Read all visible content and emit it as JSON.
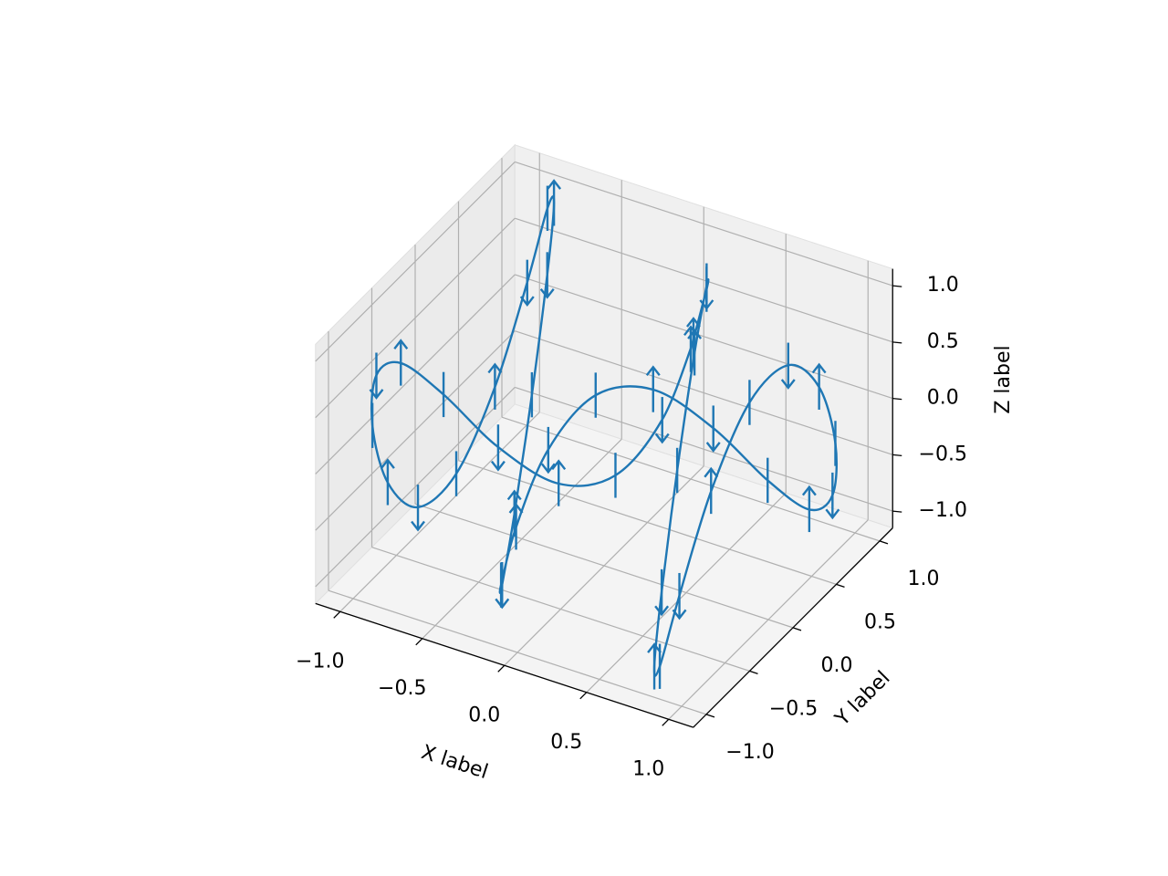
{
  "chart_data": {
    "type": "errorbar3d",
    "xlabel": "X label",
    "ylabel": "Y label",
    "zlabel": "Z label",
    "xlim": [
      -1.15,
      1.15
    ],
    "ylim": [
      -1.15,
      1.15
    ],
    "zlim": [
      -1.15,
      1.15
    ],
    "xticks": [
      {
        "value": -1,
        "label": "−1.0"
      },
      {
        "value": -0.5,
        "label": "−0.5"
      },
      {
        "value": 0,
        "label": "0.0"
      },
      {
        "value": 0.5,
        "label": "0.5"
      },
      {
        "value": 1,
        "label": "1.0"
      }
    ],
    "yticks": [
      {
        "value": -1,
        "label": "−1.0"
      },
      {
        "value": -0.5,
        "label": "−0.5"
      },
      {
        "value": 0,
        "label": "0.0"
      },
      {
        "value": 0.5,
        "label": "0.5"
      },
      {
        "value": 1,
        "label": "1.0"
      }
    ],
    "zticks": [
      {
        "value": -1,
        "label": "−1.0"
      },
      {
        "value": -0.5,
        "label": "−0.5"
      },
      {
        "value": 0,
        "label": "0.0"
      },
      {
        "value": 0.5,
        "label": "0.5"
      },
      {
        "value": 1,
        "label": "1.0"
      }
    ],
    "grid": true,
    "series": [
      {
        "color": "#1f77b4",
        "x": [
          0,
          0.149,
          0.296,
          0.435,
          0.565,
          0.682,
          0.783,
          0.867,
          0.932,
          0.976,
          0.997,
          0.997,
          0.974,
          0.929,
          0.863,
          0.778,
          0.675,
          0.558,
          0.427,
          0.287,
          0.141,
          -0.008,
          -0.158,
          -0.303,
          -0.443,
          -0.572,
          -0.688,
          -0.788,
          -0.872,
          -0.935,
          -0.978,
          -0.998,
          -0.996,
          -0.972,
          -0.926,
          -0.859,
          -0.773,
          -0.668,
          -0.551,
          -0.418,
          -0.279,
          -0.132,
          0.017
        ],
        "y": [
          1,
          0.9,
          0.622,
          0.219,
          -0.227,
          -0.628,
          -0.904,
          -1,
          -0.897,
          -0.615,
          -0.211,
          0.235,
          0.635,
          0.908,
          1,
          0.893,
          0.608,
          0.203,
          -0.243,
          -0.641,
          -0.911,
          -1,
          -0.889,
          -0.602,
          -0.195,
          0.251,
          0.648,
          0.915,
          0.999,
          0.885,
          0.594,
          0.186,
          -0.26,
          -0.654,
          -0.918,
          -0.999,
          -0.88,
          -0.586,
          -0.178,
          0.268,
          0.66,
          0.921,
          0.999
        ],
        "z": [
          0,
          0.682,
          0.997,
          0.778,
          0.141,
          -0.572,
          -0.978,
          -0.859,
          -0.279,
          0.45,
          0.938,
          0.925,
          0.412,
          -0.319,
          -0.88,
          -0.966,
          -0.537,
          0.182,
          0.804,
          0.994,
          0.65,
          -0.042,
          -0.712,
          -0.999,
          -0.751,
          -0.099,
          0.606,
          0.986,
          0.837,
          0.238,
          -0.488,
          -0.953,
          -0.906,
          -0.373,
          0.359,
          0.899,
          0.956,
          0.501,
          -0.223,
          -0.827,
          -0.988,
          -0.624,
          0.084
        ],
        "zerr": 0.2,
        "zuplims": [
          true,
          false,
          false,
          true,
          false,
          false,
          true,
          false,
          false,
          true,
          false,
          false,
          true,
          false,
          false,
          true,
          false,
          false,
          true,
          false,
          false,
          true,
          false,
          false,
          true,
          false,
          false,
          true,
          false,
          false,
          true,
          false,
          false,
          true,
          false,
          false,
          true,
          false,
          false,
          true,
          false,
          false,
          true
        ],
        "zlolims": [
          false,
          false,
          true,
          false,
          false,
          true,
          false,
          false,
          true,
          false,
          false,
          true,
          false,
          false,
          true,
          false,
          false,
          true,
          false,
          false,
          true,
          false,
          false,
          true,
          false,
          false,
          true,
          false,
          false,
          true,
          false,
          false,
          true,
          false,
          false,
          true,
          false,
          false,
          true,
          false,
          false,
          true,
          false
        ]
      }
    ]
  }
}
